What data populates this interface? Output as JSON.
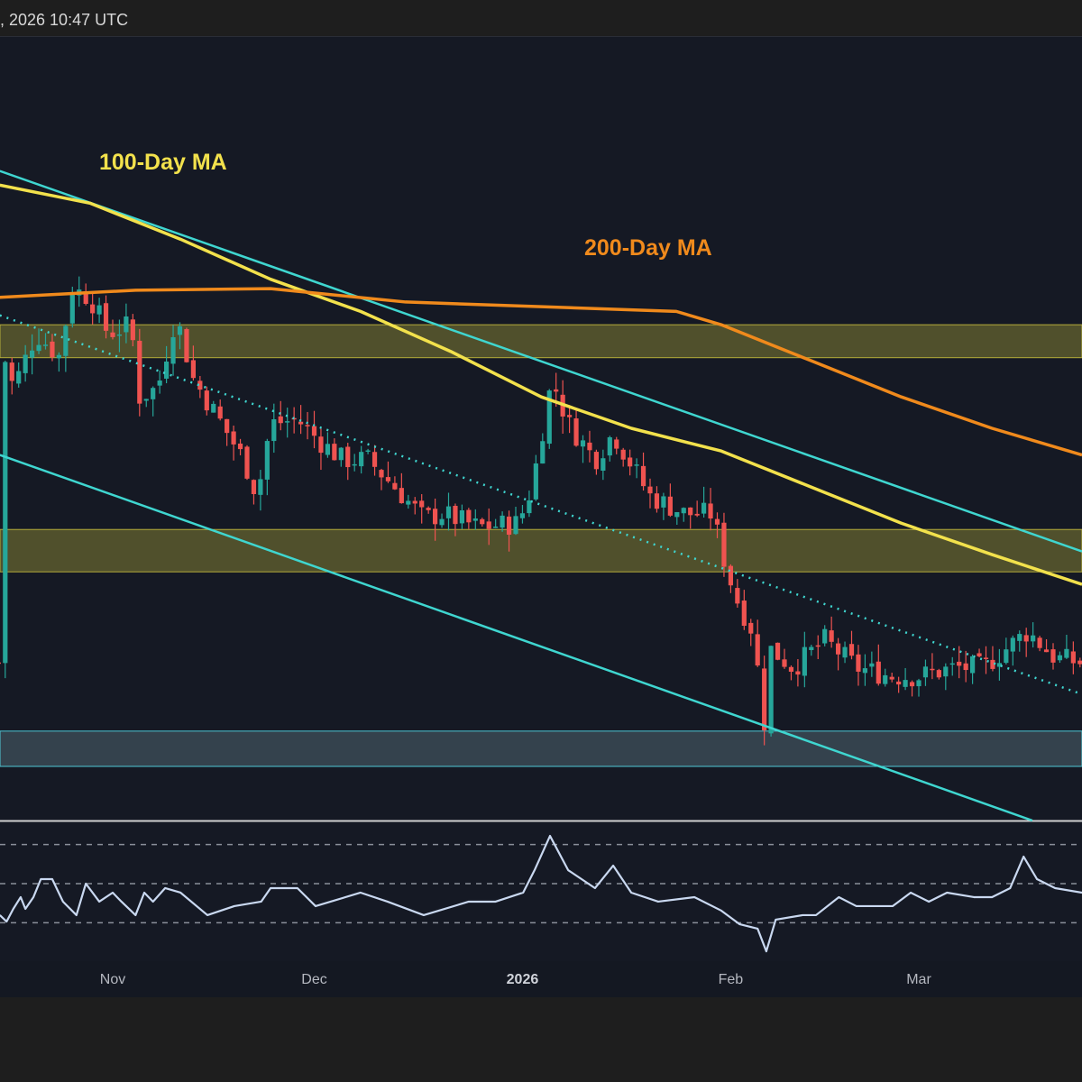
{
  "header": {
    "timestamp": ", 2026 10:47 UTC"
  },
  "colors": {
    "bg": "#151924",
    "up": "#26a69a",
    "down": "#ef5350",
    "ma100": "#f2e14c",
    "ma200": "#f08a1c",
    "channel": "#3fd6d0",
    "zone_yellow": "#5a5a2e",
    "zone_cyan": "#3a4a55",
    "rsi": "#c9d8f0"
  },
  "chart_data": {
    "type": "candlestick",
    "x_unit": "days since Nov 1",
    "xlim": [
      -16.8,
      144.3
    ],
    "ylim": [
      0,
      100
    ],
    "x_ticks": [
      {
        "label": "Nov",
        "day": 0,
        "bold": false
      },
      {
        "label": "Dec",
        "day": 30,
        "bold": false
      },
      {
        "label": "2026",
        "day": 61,
        "bold": true
      },
      {
        "label": "Feb",
        "day": 92,
        "bold": false
      },
      {
        "label": "Mar",
        "day": 120,
        "bold": false
      }
    ],
    "price_waypoints": [
      [
        -16.8,
        60.9
      ],
      [
        -14.8,
        55.2
      ],
      [
        -11.4,
        62.1
      ],
      [
        -8,
        59.2
      ],
      [
        -6,
        67.8
      ],
      [
        -3.4,
        66.7
      ],
      [
        -0.7,
        62.1
      ],
      [
        2.7,
        63.2
      ],
      [
        4,
        54.0
      ],
      [
        6.7,
        55.2
      ],
      [
        9.4,
        64.4
      ],
      [
        12,
        56.3
      ],
      [
        15.4,
        51.7
      ],
      [
        19.5,
        46.0
      ],
      [
        21.5,
        41.4
      ],
      [
        23.5,
        50.6
      ],
      [
        27.5,
        51.1
      ],
      [
        30.9,
        48.3
      ],
      [
        34.2,
        46.0
      ],
      [
        38,
        46.0
      ],
      [
        42,
        42.5
      ],
      [
        46.3,
        38.5
      ],
      [
        49,
        39.1
      ],
      [
        54.4,
        37.4
      ],
      [
        60.4,
        37.9
      ],
      [
        62.4,
        42.5
      ],
      [
        65.4,
        56.3
      ],
      [
        67.8,
        50.6
      ],
      [
        71.8,
        46.0
      ],
      [
        74.5,
        49.4
      ],
      [
        79.9,
        41.4
      ],
      [
        85.2,
        39.1
      ],
      [
        89.3,
        39.1
      ],
      [
        90.6,
        34.5
      ],
      [
        92.6,
        28.7
      ],
      [
        95.3,
        24.1
      ],
      [
        97,
        12.6
      ],
      [
        98,
        21.8
      ],
      [
        101.3,
        19.5
      ],
      [
        106,
        23.0
      ],
      [
        110.7,
        19.5
      ],
      [
        116,
        18.4
      ],
      [
        120,
        18.4
      ],
      [
        125.5,
        19.5
      ],
      [
        129.5,
        19.5
      ],
      [
        136.2,
        24.1
      ],
      [
        140.3,
        20.7
      ],
      [
        144.3,
        20.1
      ]
    ],
    "ma100": {
      "label": "100-Day MA",
      "points": [
        [
          -16.8,
          81.0
        ],
        [
          -3.4,
          78.7
        ],
        [
          10.1,
          74.1
        ],
        [
          23.5,
          69.0
        ],
        [
          36.9,
          64.9
        ],
        [
          50.3,
          59.8
        ],
        [
          63.8,
          54.0
        ],
        [
          77.2,
          50.0
        ],
        [
          90.6,
          47.1
        ],
        [
          104,
          42.5
        ],
        [
          117.4,
          37.9
        ],
        [
          130.9,
          33.9
        ],
        [
          144.3,
          30.1
        ]
      ]
    },
    "ma200": {
      "label": "200-Day MA",
      "points": [
        [
          -16.8,
          66.7
        ],
        [
          3.4,
          67.6
        ],
        [
          23.5,
          67.8
        ],
        [
          43.6,
          66.1
        ],
        [
          63.8,
          65.5
        ],
        [
          83.9,
          64.9
        ],
        [
          90.6,
          63.2
        ],
        [
          104,
          58.6
        ],
        [
          117.4,
          54.0
        ],
        [
          130.9,
          50.0
        ],
        [
          144.3,
          46.6
        ]
      ]
    },
    "channel_upper": [
      [
        -16.8,
        82.8
      ],
      [
        144.3,
        34.3
      ]
    ],
    "channel_lower": [
      [
        -16.8,
        46.6
      ],
      [
        136.9,
        0
      ]
    ],
    "channel_mid_dotted": [
      [
        -16.8,
        64.4
      ],
      [
        144.3,
        16.1
      ]
    ],
    "zones": [
      {
        "type": "resistance",
        "range": [
          59.0,
          63.2
        ]
      },
      {
        "type": "resistance",
        "range": [
          31.7,
          37.1
        ]
      },
      {
        "type": "support",
        "range": [
          6.9,
          11.4
        ]
      }
    ],
    "rsi": {
      "levels": [
        70,
        50,
        30
      ],
      "points": [
        [
          -16.8,
          33.9
        ],
        [
          -15.8,
          30.6
        ],
        [
          -14.8,
          37.1
        ],
        [
          -13.7,
          43.1
        ],
        [
          -13,
          37.1
        ],
        [
          -11.8,
          43.1
        ],
        [
          -10.7,
          52.3
        ],
        [
          -9,
          52.3
        ],
        [
          -7.4,
          40.8
        ],
        [
          -5.4,
          33.9
        ],
        [
          -4,
          50
        ],
        [
          -2,
          40.8
        ],
        [
          0,
          45.4
        ],
        [
          1.3,
          40.8
        ],
        [
          3.4,
          33.9
        ],
        [
          4.7,
          45.4
        ],
        [
          6,
          40.8
        ],
        [
          7.8,
          47.7
        ],
        [
          10.1,
          45.4
        ],
        [
          14.1,
          33.9
        ],
        [
          18.1,
          38.5
        ],
        [
          22.1,
          40.8
        ],
        [
          23.5,
          47.7
        ],
        [
          27.5,
          47.7
        ],
        [
          30.2,
          38.5
        ],
        [
          36.9,
          45.4
        ],
        [
          40.9,
          40.8
        ],
        [
          46.3,
          33.9
        ],
        [
          53,
          40.8
        ],
        [
          57,
          40.8
        ],
        [
          61.1,
          45.4
        ],
        [
          62.8,
          56.9
        ],
        [
          65.1,
          74.4
        ],
        [
          67.8,
          56.9
        ],
        [
          71.8,
          47.7
        ],
        [
          74.5,
          59.2
        ],
        [
          77.2,
          45.4
        ],
        [
          81.2,
          40.8
        ],
        [
          86.6,
          43.1
        ],
        [
          90.6,
          36.2
        ],
        [
          93.3,
          29.3
        ],
        [
          96,
          27
        ],
        [
          97.3,
          15.4
        ],
        [
          98.7,
          31.6
        ],
        [
          102.7,
          33.9
        ],
        [
          104.7,
          33.9
        ],
        [
          108.1,
          43.1
        ],
        [
          110.7,
          38.5
        ],
        [
          116.1,
          38.5
        ],
        [
          118.8,
          45.4
        ],
        [
          121.5,
          40.8
        ],
        [
          124.2,
          45.4
        ],
        [
          128.2,
          43.1
        ],
        [
          130.9,
          43.1
        ],
        [
          133.6,
          47.7
        ],
        [
          135.6,
          63.8
        ],
        [
          137.6,
          52.3
        ],
        [
          140.3,
          47.7
        ],
        [
          144.3,
          45.4
        ]
      ]
    }
  }
}
